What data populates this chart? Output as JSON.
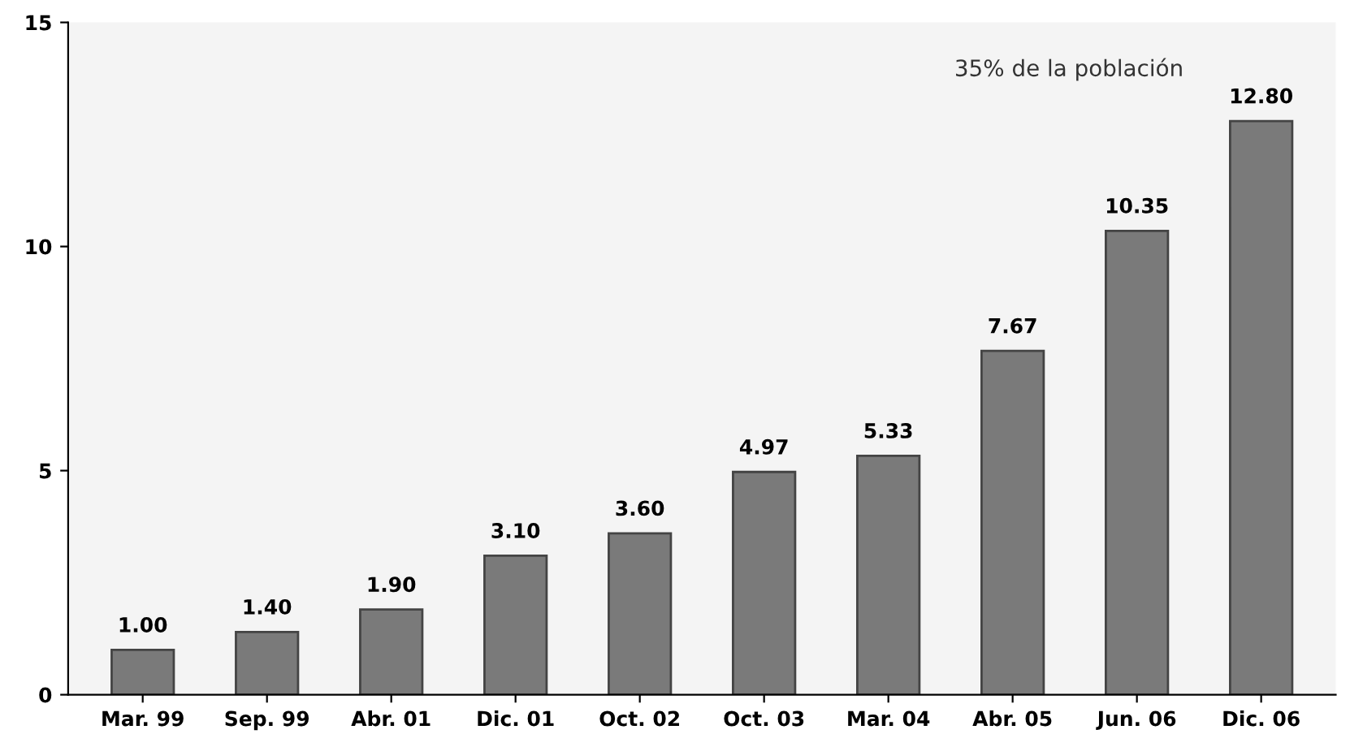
{
  "chart_data": {
    "type": "bar",
    "categories": [
      "Mar. 99",
      "Sep. 99",
      "Abr. 01",
      "Dic. 01",
      "Oct. 02",
      "Oct. 03",
      "Mar. 04",
      "Abr. 05",
      "Jun. 06",
      "Dic. 06"
    ],
    "values": [
      1.0,
      1.4,
      1.9,
      3.1,
      3.6,
      4.97,
      5.33,
      7.67,
      10.35,
      12.8
    ],
    "value_labels": [
      "1.00",
      "1.40",
      "1.90",
      "3.10",
      "3.60",
      "4.97",
      "5.33",
      "7.67",
      "10.35",
      "12.80"
    ],
    "color": "#7a7a7a",
    "ylim": [
      0,
      15
    ],
    "yticks": [
      0,
      5,
      10,
      15
    ],
    "grid": false,
    "annotations": [
      "35% de la población"
    ]
  }
}
